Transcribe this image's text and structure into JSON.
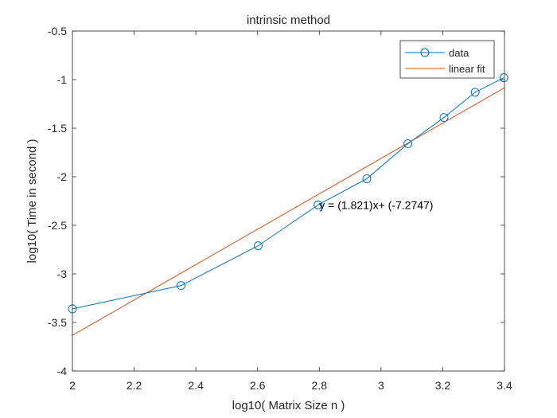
{
  "chart_data": {
    "type": "line",
    "title": "intrinsic method",
    "xlabel": "log10( Matrix Size n )",
    "ylabel": "log10( Time in second )",
    "xlim": [
      2,
      3.4
    ],
    "ylim": [
      -4,
      -0.5
    ],
    "xticks": [
      2,
      2.2,
      2.4,
      2.6,
      2.8,
      3,
      3.2,
      3.4
    ],
    "yticks": [
      -4,
      -3.5,
      -3,
      -2.5,
      -2,
      -1.5,
      -1,
      -0.5
    ],
    "xtick_labels": [
      "2",
      "2.2",
      "2.4",
      "2.6",
      "2.8",
      "3",
      "3.2",
      "3.4"
    ],
    "ytick_labels": [
      "-4",
      "-3.5",
      "-3",
      "-2.5",
      "-2",
      "-1.5",
      "-1",
      "-0.5"
    ],
    "grid": false,
    "legend_position": "top-right",
    "series": [
      {
        "name": "data",
        "color": "#0072bd",
        "marker": "circle",
        "x": [
          2.0,
          2.352,
          2.602,
          2.796,
          2.954,
          3.087,
          3.204,
          3.305,
          3.398
        ],
        "y": [
          -3.36,
          -3.12,
          -2.71,
          -2.29,
          -2.02,
          -1.66,
          -1.39,
          -1.13,
          -0.98
        ]
      },
      {
        "name": "linear fit",
        "color": "#d95319",
        "marker": "none",
        "slope": 1.821,
        "intercept": -7.2747,
        "x": [
          2.0,
          3.4
        ],
        "y": [
          -3.6327,
          -1.0833
        ]
      }
    ],
    "annotation": {
      "text": "y = (1.821)x+ (-7.2747)",
      "x": 2.8,
      "y": -2.29
    }
  }
}
